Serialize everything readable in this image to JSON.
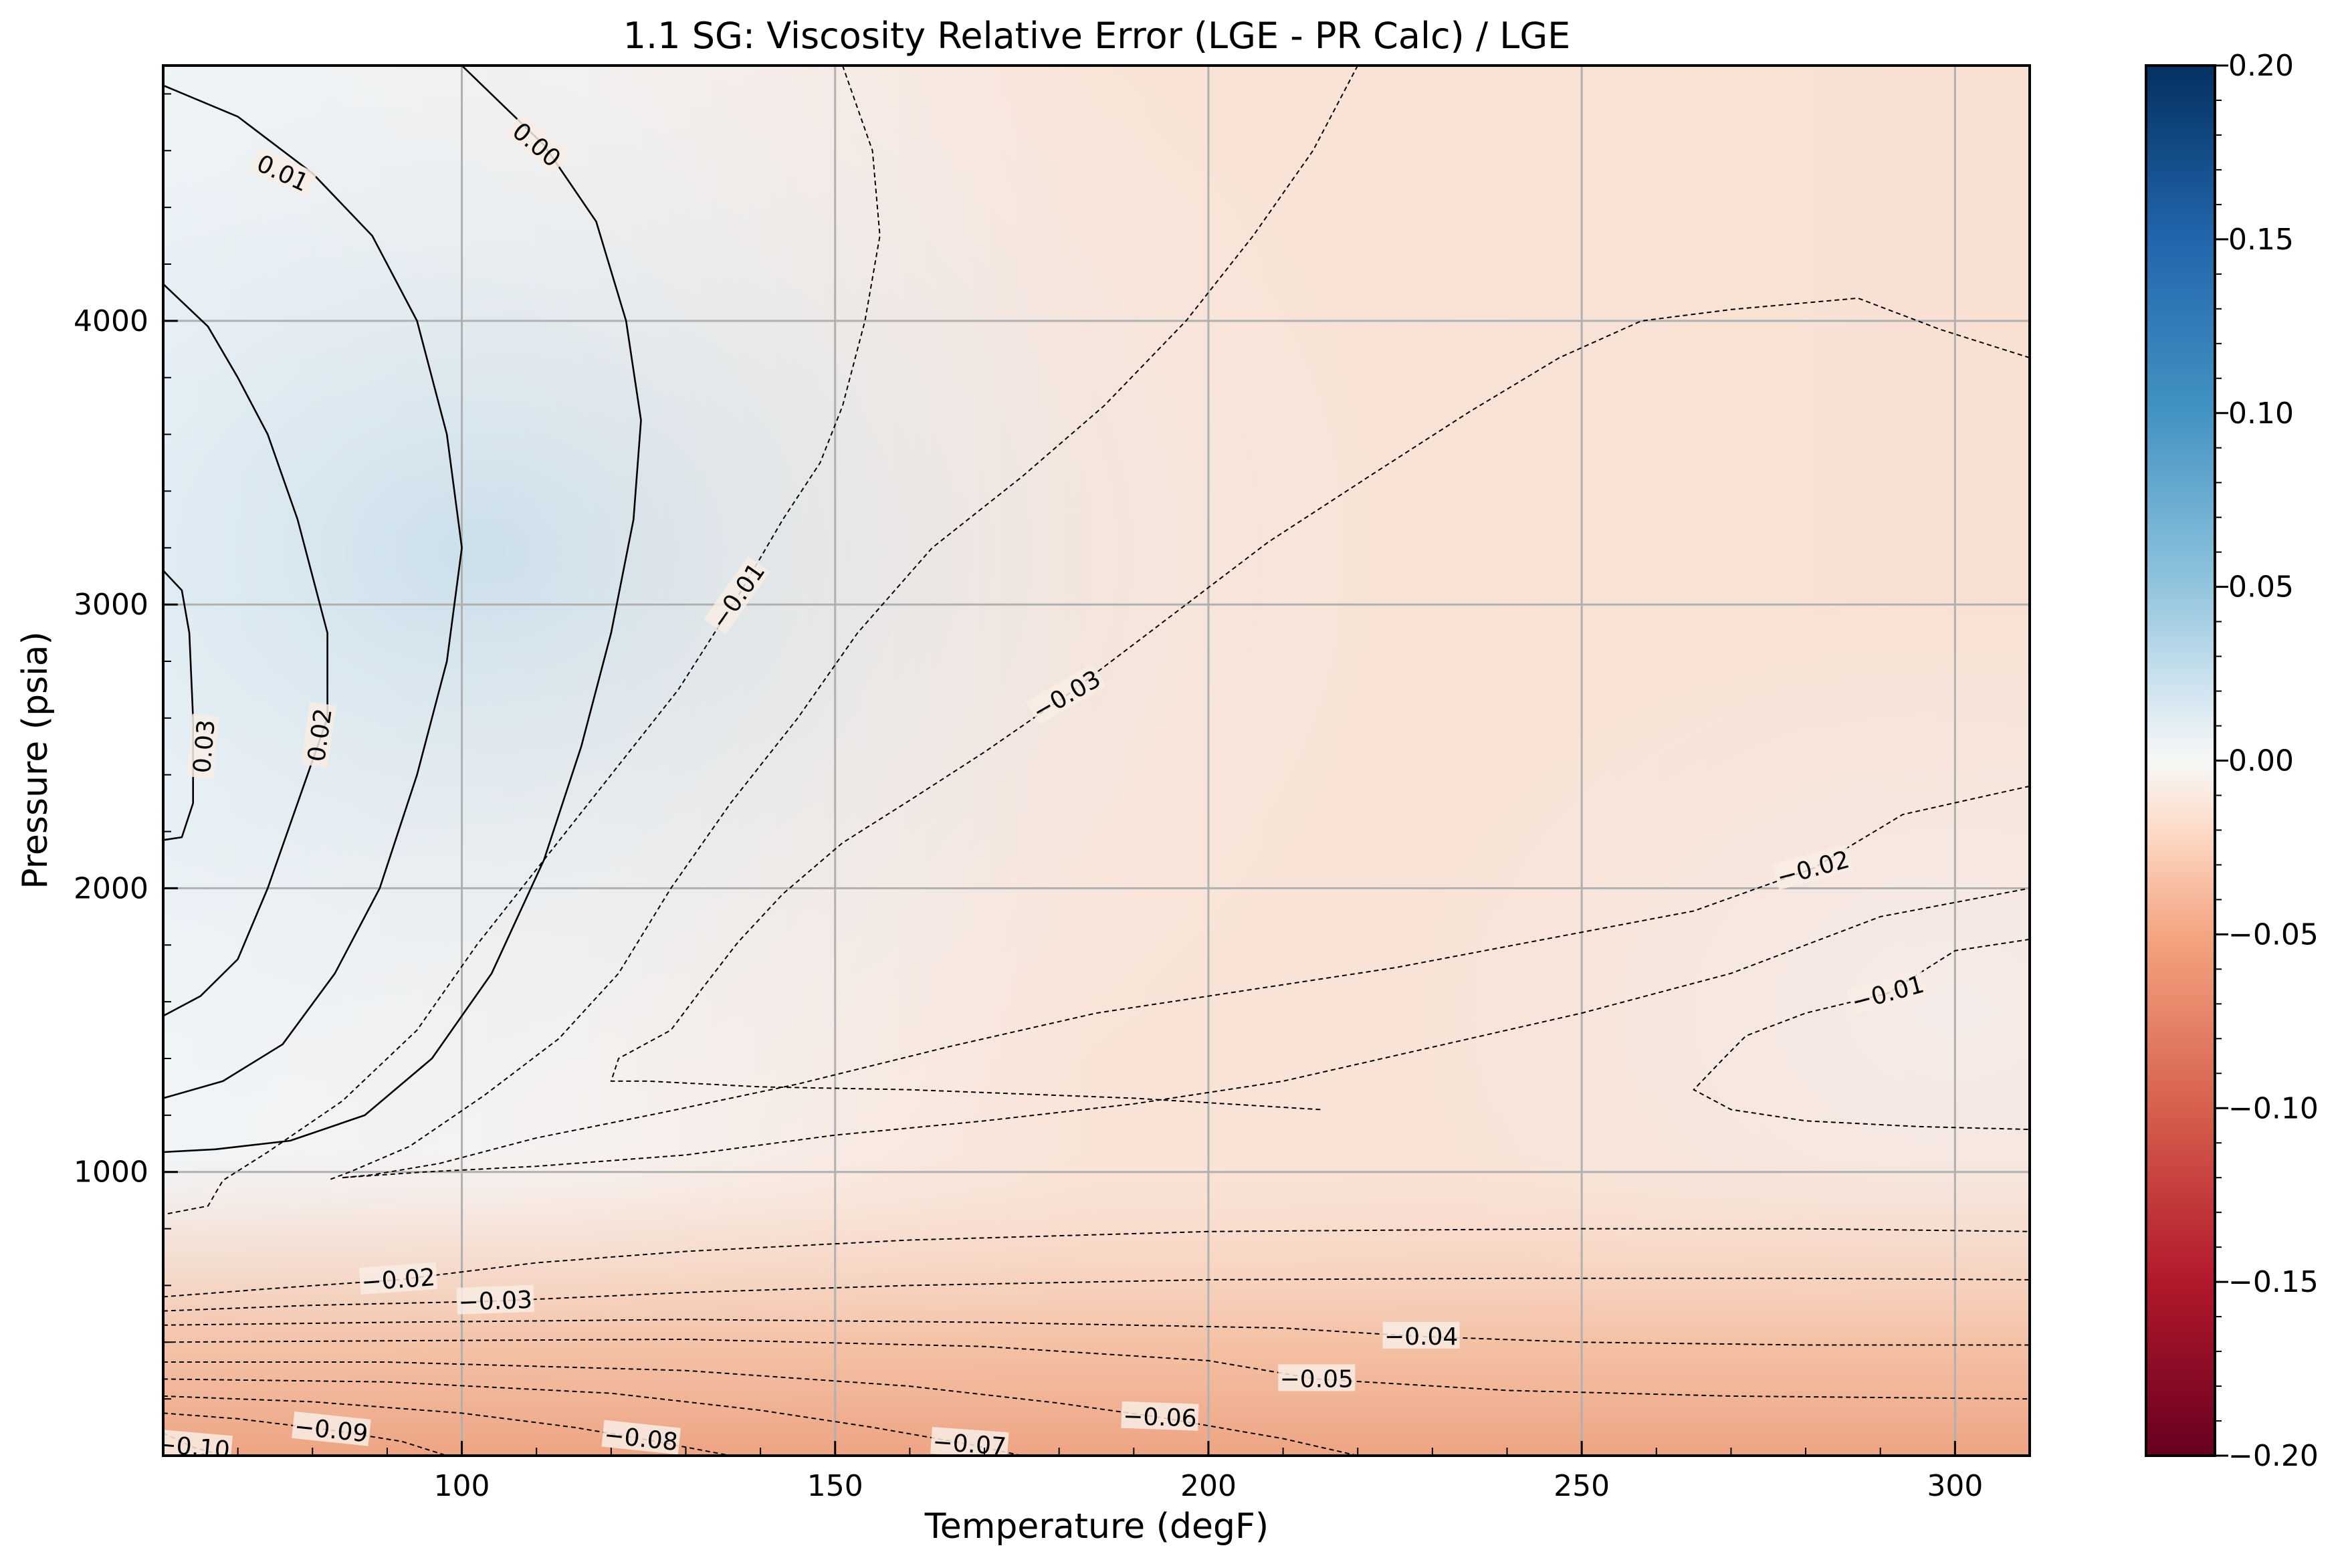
{
  "chart_data": {
    "type": "heatmap",
    "title": "1.1 SG: Viscosity Relative Error (LGE - PR Calc) / LGE",
    "xlabel": "Temperature (degF)",
    "ylabel": "Pressure (psia)",
    "xlim": [
      60,
      310
    ],
    "ylim": [
      0,
      4900
    ],
    "x_ticks": [
      100,
      150,
      200,
      250,
      300
    ],
    "y_ticks": [
      1000,
      2000,
      3000,
      4000
    ],
    "grid": true,
    "colormap": "RdBu",
    "colors": {
      "min": "#67001f",
      "neutral": "#f7f7f7",
      "max": "#053061"
    },
    "colorbar": {
      "vmin": -0.2,
      "vmax": 0.2,
      "ticks": [
        0.2,
        0.15,
        0.1,
        0.05,
        0.0,
        -0.05,
        -0.1,
        -0.15,
        -0.2
      ],
      "tick_labels": [
        "0.20",
        "0.15",
        "0.10",
        "0.05",
        "0.00",
        "−0.05",
        "−0.10",
        "−0.15",
        "−0.20"
      ]
    },
    "contour_labels": [
      {
        "text": "0.01",
        "x": 76,
        "y": 4520,
        "angle": 25
      },
      {
        "text": "0.00",
        "x": 110,
        "y": 4620,
        "angle": 40
      },
      {
        "text": "0.03",
        "x": 65.5,
        "y": 2500,
        "angle": -85
      },
      {
        "text": "0.02",
        "x": 81,
        "y": 2540,
        "angle": -82
      },
      {
        "text": "−0.01",
        "x": 137,
        "y": 3030,
        "angle": -55
      },
      {
        "text": "−0.03",
        "x": 181,
        "y": 2680,
        "angle": -30
      },
      {
        "text": "−0.02",
        "x": 281,
        "y": 2070,
        "angle": -15
      },
      {
        "text": "−0.01",
        "x": 291,
        "y": 1630,
        "angle": -15
      },
      {
        "text": "−0.02",
        "x": 91.5,
        "y": 620,
        "angle": -4
      },
      {
        "text": "−0.03",
        "x": 104.5,
        "y": 545,
        "angle": -2
      },
      {
        "text": "−0.04",
        "x": 228.5,
        "y": 420,
        "angle": 0
      },
      {
        "text": "−0.05",
        "x": 214.5,
        "y": 270,
        "angle": 0
      },
      {
        "text": "−0.06",
        "x": 193.5,
        "y": 135,
        "angle": 2
      },
      {
        "text": "−0.07",
        "x": 168,
        "y": 40,
        "angle": 4
      },
      {
        "text": "−0.08",
        "x": 124,
        "y": 60,
        "angle": 6
      },
      {
        "text": "−0.09",
        "x": 82.5,
        "y": 90,
        "angle": 6
      },
      {
        "text": "−0.10",
        "x": 64,
        "y": 30,
        "angle": 5
      }
    ],
    "contours": [
      {
        "level": "0.03",
        "style": "solid",
        "points": [
          [
            60,
            3120
          ],
          [
            62.5,
            3050
          ],
          [
            63.5,
            2900
          ],
          [
            64,
            2600
          ],
          [
            64,
            2300
          ],
          [
            62.5,
            2180
          ],
          [
            60,
            2170
          ]
        ]
      },
      {
        "level": "0.02",
        "style": "solid",
        "points": [
          [
            60,
            4130
          ],
          [
            66,
            3980
          ],
          [
            70,
            3800
          ],
          [
            74,
            3600
          ],
          [
            78,
            3300
          ],
          [
            82,
            2900
          ],
          [
            82,
            2600
          ],
          [
            78,
            2300
          ],
          [
            74,
            2000
          ],
          [
            70,
            1750
          ],
          [
            65,
            1620
          ],
          [
            60,
            1550
          ]
        ]
      },
      {
        "level": "0.01",
        "style": "solid",
        "points": [
          [
            60,
            4830
          ],
          [
            70,
            4720
          ],
          [
            80,
            4520
          ],
          [
            88,
            4300
          ],
          [
            94,
            4000
          ],
          [
            98,
            3600
          ],
          [
            100,
            3200
          ],
          [
            98,
            2800
          ],
          [
            94,
            2400
          ],
          [
            89,
            2000
          ],
          [
            83,
            1700
          ],
          [
            76,
            1450
          ],
          [
            68,
            1320
          ],
          [
            60,
            1260
          ]
        ]
      },
      {
        "level": "0.00",
        "style": "solid",
        "points": [
          [
            100,
            4900
          ],
          [
            111,
            4620
          ],
          [
            118,
            4350
          ],
          [
            122,
            4000
          ],
          [
            124,
            3650
          ],
          [
            123,
            3300
          ],
          [
            120,
            2900
          ],
          [
            116,
            2500
          ],
          [
            111,
            2100
          ],
          [
            104,
            1700
          ],
          [
            96,
            1400
          ],
          [
            87,
            1200
          ],
          [
            77,
            1110
          ],
          [
            67,
            1080
          ],
          [
            60,
            1070
          ]
        ]
      },
      {
        "level": "-0.01 left",
        "style": "dashed",
        "points": [
          [
            151,
            4900
          ],
          [
            155,
            4600
          ],
          [
            156,
            4300
          ],
          [
            154,
            4000
          ],
          [
            151,
            3700
          ],
          [
            148,
            3500
          ],
          [
            143,
            3300
          ],
          [
            137,
            3030
          ],
          [
            129,
            2700
          ],
          [
            120,
            2400
          ],
          [
            111,
            2100
          ],
          [
            102,
            1800
          ],
          [
            94,
            1500
          ],
          [
            84,
            1250
          ],
          [
            74,
            1070
          ],
          [
            68,
            970
          ],
          [
            66,
            880
          ],
          [
            60,
            850
          ]
        ]
      },
      {
        "level": "-0.01 inner",
        "style": "dashed",
        "points": [
          [
            220,
            4900
          ],
          [
            214,
            4600
          ],
          [
            206,
            4300
          ],
          [
            197,
            4000
          ],
          [
            186,
            3700
          ],
          [
            175,
            3450
          ],
          [
            163,
            3200
          ],
          [
            153,
            2900
          ],
          [
            145,
            2600
          ],
          [
            136,
            2300
          ],
          [
            128,
            2000
          ],
          [
            121,
            1700
          ],
          [
            113,
            1470
          ],
          [
            103,
            1270
          ],
          [
            93,
            1090
          ],
          [
            85,
            1000
          ],
          [
            82,
            970
          ]
        ]
      },
      {
        "level": "-0.03 big",
        "style": "dashed",
        "points": [
          [
            310,
            3870
          ],
          [
            298,
            3970
          ],
          [
            287,
            4080
          ],
          [
            270,
            4040
          ],
          [
            258,
            4000
          ],
          [
            247,
            3870
          ],
          [
            235,
            3680
          ],
          [
            222,
            3460
          ],
          [
            208,
            3220
          ],
          [
            194,
            2940
          ],
          [
            181,
            2680
          ],
          [
            170,
            2480
          ],
          [
            160,
            2310
          ],
          [
            151,
            2160
          ],
          [
            143,
            1980
          ],
          [
            137,
            1810
          ],
          [
            132,
            1640
          ],
          [
            128,
            1500
          ],
          [
            121,
            1400
          ],
          [
            120,
            1320
          ],
          [
            125,
            1320
          ],
          [
            140,
            1300
          ],
          [
            160,
            1290
          ],
          [
            190,
            1260
          ],
          [
            215,
            1220
          ]
        ]
      },
      {
        "level": "-0.02 mid",
        "style": "dashed",
        "points": [
          [
            310,
            2360
          ],
          [
            293,
            2260
          ],
          [
            281,
            2070
          ],
          [
            265,
            1920
          ],
          [
            245,
            1820
          ],
          [
            225,
            1720
          ],
          [
            205,
            1640
          ],
          [
            185,
            1560
          ],
          [
            165,
            1440
          ],
          [
            145,
            1310
          ],
          [
            127,
            1210
          ],
          [
            110,
            1120
          ],
          [
            97,
            1030
          ],
          [
            88,
            990
          ],
          [
            84,
            980
          ]
        ]
      },
      {
        "level": "-0.02 low",
        "style": "dashed",
        "points": [
          [
            84,
            980
          ],
          [
            95,
            1000
          ],
          [
            110,
            1020
          ],
          [
            130,
            1060
          ],
          [
            150,
            1130
          ],
          [
            170,
            1180
          ],
          [
            190,
            1240
          ],
          [
            210,
            1320
          ],
          [
            230,
            1440
          ],
          [
            250,
            1560
          ],
          [
            270,
            1700
          ],
          [
            290,
            1900
          ],
          [
            310,
            2000
          ]
        ]
      },
      {
        "level": "-0.01 right",
        "style": "dashed",
        "points": [
          [
            310,
            1820
          ],
          [
            300,
            1780
          ],
          [
            291,
            1630
          ],
          [
            280,
            1560
          ],
          [
            272,
            1480
          ],
          [
            269,
            1400
          ],
          [
            265,
            1290
          ],
          [
            270,
            1220
          ],
          [
            280,
            1180
          ],
          [
            295,
            1160
          ],
          [
            310,
            1150
          ]
        ]
      },
      {
        "level": "-0.02 bottom",
        "style": "dashed",
        "points": [
          [
            60,
            560
          ],
          [
            75,
            590
          ],
          [
            91.5,
            620
          ],
          [
            110,
            680
          ],
          [
            130,
            720
          ],
          [
            160,
            760
          ],
          [
            200,
            790
          ],
          [
            250,
            800
          ],
          [
            280,
            800
          ],
          [
            310,
            790
          ]
        ]
      },
      {
        "level": "-0.03 bottom",
        "style": "dashed",
        "points": [
          [
            60,
            510
          ],
          [
            80,
            530
          ],
          [
            104.5,
            545
          ],
          [
            130,
            575
          ],
          [
            160,
            600
          ],
          [
            200,
            620
          ],
          [
            240,
            625
          ],
          [
            280,
            625
          ],
          [
            310,
            620
          ]
        ]
      },
      {
        "level": "-0.04",
        "style": "dashed",
        "points": [
          [
            60,
            460
          ],
          [
            90,
            470
          ],
          [
            130,
            480
          ],
          [
            170,
            470
          ],
          [
            210,
            450
          ],
          [
            228.5,
            420
          ],
          [
            250,
            400
          ],
          [
            280,
            390
          ],
          [
            310,
            390
          ]
        ]
      },
      {
        "level": "-0.05",
        "style": "dashed",
        "points": [
          [
            60,
            400
          ],
          [
            90,
            405
          ],
          [
            130,
            410
          ],
          [
            170,
            385
          ],
          [
            200,
            335
          ],
          [
            214.5,
            270
          ],
          [
            240,
            230
          ],
          [
            270,
            210
          ],
          [
            310,
            200
          ]
        ]
      },
      {
        "level": "-0.06",
        "style": "dashed",
        "points": [
          [
            60,
            330
          ],
          [
            90,
            330
          ],
          [
            130,
            300
          ],
          [
            160,
            245
          ],
          [
            180,
            185
          ],
          [
            193.5,
            135
          ],
          [
            210,
            60
          ],
          [
            220,
            0
          ]
        ]
      },
      {
        "level": "-0.07",
        "style": "dashed",
        "points": [
          [
            60,
            270
          ],
          [
            90,
            260
          ],
          [
            120,
            220
          ],
          [
            140,
            160
          ],
          [
            155,
            100
          ],
          [
            168,
            40
          ],
          [
            175,
            0
          ]
        ]
      },
      {
        "level": "-0.08",
        "style": "dashed",
        "points": [
          [
            60,
            210
          ],
          [
            80,
            190
          ],
          [
            100,
            150
          ],
          [
            115,
            100
          ],
          [
            124,
            60
          ],
          [
            132,
            20
          ],
          [
            136,
            0
          ]
        ]
      },
      {
        "level": "-0.09",
        "style": "dashed",
        "points": [
          [
            60,
            150
          ],
          [
            70,
            130
          ],
          [
            82.5,
            90
          ],
          [
            92,
            50
          ],
          [
            98,
            0
          ]
        ]
      },
      {
        "level": "-0.10",
        "style": "dashed",
        "points": [
          [
            60,
            80
          ],
          [
            64,
            30
          ],
          [
            68,
            0
          ]
        ]
      }
    ]
  }
}
